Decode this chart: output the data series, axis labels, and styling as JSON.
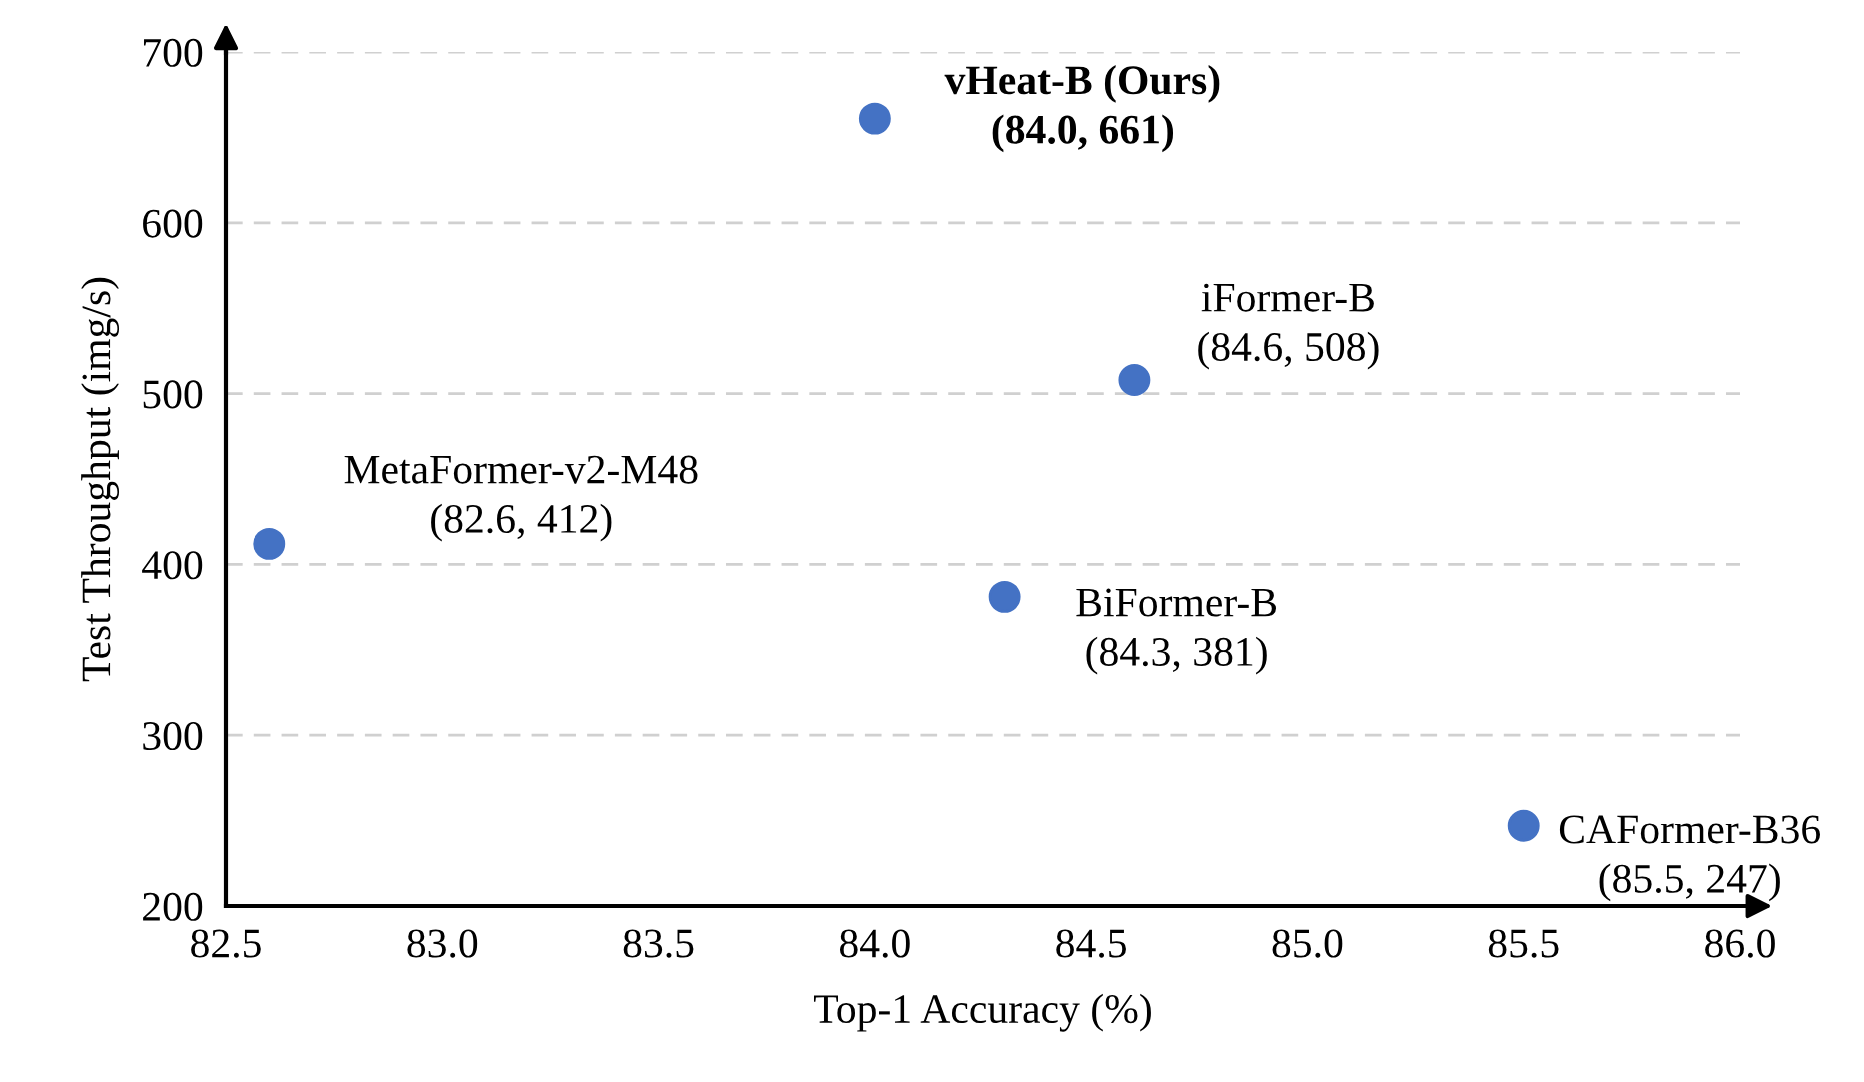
{
  "chart_data": {
    "type": "scatter",
    "xlabel": "Top-1 Accuracy (%)",
    "ylabel": "Test Throughput (img/s)",
    "x": [
      84.0,
      84.6,
      82.6,
      84.3,
      85.5
    ],
    "series": [
      {
        "color": "#4472c4",
        "values": [
          661,
          508,
          412,
          381,
          247
        ]
      }
    ],
    "xlim": [
      82.5,
      86.0
    ],
    "xticks": [
      {
        "value": 82.5,
        "label": "82.5"
      },
      {
        "value": 83.0,
        "label": "83.0"
      },
      {
        "value": 83.5,
        "label": "83.5"
      },
      {
        "value": 84.0,
        "label": "84.0"
      },
      {
        "value": 84.5,
        "label": "84.5"
      },
      {
        "value": 85.0,
        "label": "85.0"
      },
      {
        "value": 85.5,
        "label": "85.5"
      },
      {
        "value": 86.0,
        "label": "86.0"
      }
    ],
    "ylim": [
      200,
      700
    ],
    "yticks": [
      200,
      300,
      400,
      500,
      600,
      700
    ],
    "grid": "y",
    "marker": "circle",
    "annotations": [
      {
        "text": "vHeat-B (Ours)\n(84.0, 661)",
        "x": 84.0,
        "y": 661
      },
      {
        "text": "iFormer-B\n(84.6, 508)",
        "x": 84.6,
        "y": 508
      },
      {
        "text": "MetaFormer-v2-M48\n(82.6, 412)",
        "x": 82.6,
        "y": 412
      },
      {
        "text": "BiFormer-B\n(84.3, 381)",
        "x": 84.3,
        "y": 381
      },
      {
        "text": "CAFormer-B36\n(85.5, 247)",
        "x": 85.5,
        "y": 247
      }
    ]
  }
}
